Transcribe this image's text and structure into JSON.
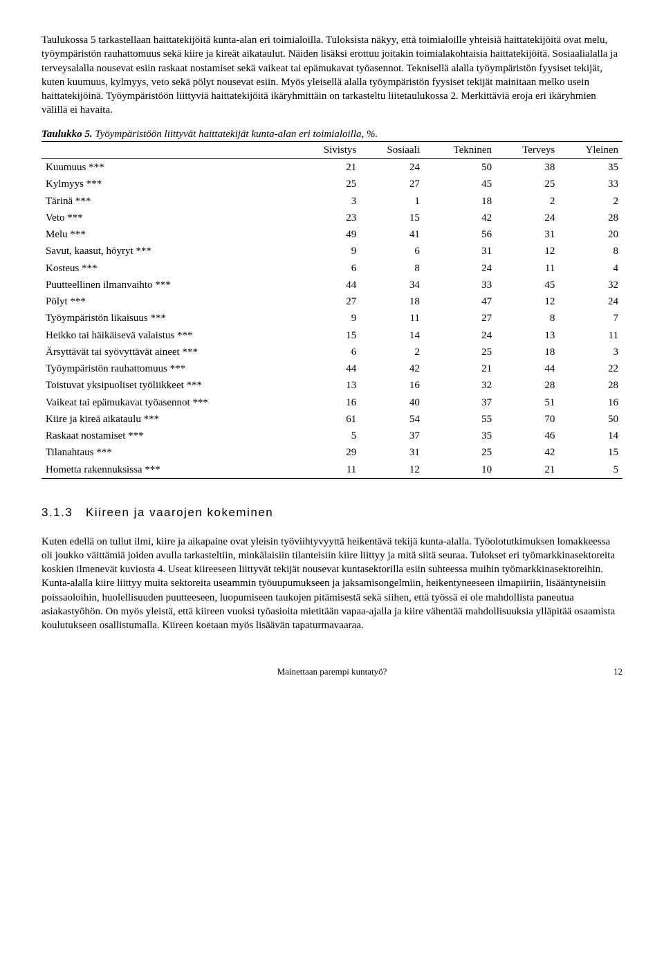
{
  "para1": "Taulukossa 5 tarkastellaan haittatekijöitä kunta-alan eri toimialoilla. Tuloksista näkyy, että toimialoille yhteisiä haittatekijöitä ovat melu, työympäristön rauhattomuus sekä kiire ja kireät aikataulut. Näiden lisäksi erottuu joitakin toimialakohtaisia haittatekijöitä. Sosiaalialalla ja terveysalalla nousevat esiin raskaat nostamiset sekä vaikeat tai epämukavat työasennot. Teknisellä alalla työympäristön fyysiset tekijät, kuten kuumuus, kylmyys, veto sekä pölyt nousevat esiin. Myös yleisellä alalla työympäristön fyysiset tekijät mainitaan melko usein haittatekijöinä. Työympäristöön liittyviä haittatekijöitä ikäryhmittäin on tarkasteltu liitetaulukossa 2. Merkittäviä eroja eri ikäryhmien välillä ei havaita.",
  "tableTitleBold": "Taulukko 5.",
  "tableTitleItalic": " Työympäristöön liittyvät haittatekijät kunta-alan eri toimialoilla, %.",
  "table": {
    "columns": [
      "",
      "Sivistys",
      "Sosiaali",
      "Tekninen",
      "Terveys",
      "Yleinen"
    ],
    "rows": [
      [
        "Kuumuus ***",
        "21",
        "24",
        "50",
        "38",
        "35"
      ],
      [
        "Kylmyys ***",
        "25",
        "27",
        "45",
        "25",
        "33"
      ],
      [
        "Tärinä ***",
        "3",
        "1",
        "18",
        "2",
        "2"
      ],
      [
        "Veto ***",
        "23",
        "15",
        "42",
        "24",
        "28"
      ],
      [
        "Melu ***",
        "49",
        "41",
        "56",
        "31",
        "20"
      ],
      [
        "Savut, kaasut, höyryt ***",
        "9",
        "6",
        "31",
        "12",
        "8"
      ],
      [
        "Kosteus ***",
        "6",
        "8",
        "24",
        "11",
        "4"
      ],
      [
        "Puutteellinen ilmanvaihto ***",
        "44",
        "34",
        "33",
        "45",
        "32"
      ],
      [
        "Pölyt ***",
        "27",
        "18",
        "47",
        "12",
        "24"
      ],
      [
        "Työympäristön likaisuus ***",
        "9",
        "11",
        "27",
        "8",
        "7"
      ],
      [
        "Heikko tai häikäisevä valaistus ***",
        "15",
        "14",
        "24",
        "13",
        "11"
      ],
      [
        "Ärsyttävät tai syövyttävät aineet ***",
        "6",
        "2",
        "25",
        "18",
        "3"
      ],
      [
        "Työympäristön rauhattomuus ***",
        "44",
        "42",
        "21",
        "44",
        "22"
      ],
      [
        "Toistuvat yksipuoliset työliikkeet ***",
        "13",
        "16",
        "32",
        "28",
        "28"
      ],
      [
        "Vaikeat tai epämukavat työasennot ***",
        "16",
        "40",
        "37",
        "51",
        "16"
      ],
      [
        "Kiire ja kireä aikataulu ***",
        "61",
        "54",
        "55",
        "70",
        "50"
      ],
      [
        "Raskaat nostamiset ***",
        "5",
        "37",
        "35",
        "46",
        "14"
      ],
      [
        "Tilanahtaus ***",
        "29",
        "31",
        "25",
        "42",
        "15"
      ],
      [
        "Hometta rakennuksissa ***",
        "11",
        "12",
        "10",
        "21",
        "5"
      ]
    ],
    "col_widths": [
      "44%",
      "11%",
      "11%",
      "11%",
      "11%",
      "12%"
    ],
    "border_color": "#000000",
    "font_size": 15
  },
  "sectionNumber": "3.1.3",
  "sectionTitle": "Kiireen ja vaarojen kokeminen",
  "para2": "Kuten edellä on tullut ilmi, kiire ja aikapaine ovat yleisin työviihtyvyyttä heikentävä tekijä kunta-alalla. Työolotutkimuksen lomakkeessa oli joukko väittämiä joiden avulla tarkasteltiin, minkälaisiin tilanteisiin kiire liittyy ja mitä siitä seuraa. Tulokset eri työmarkkinasektoreita koskien ilmenevät kuviosta 4. Useat kiireeseen liittyvät tekijät nousevat kuntasektorilla esiin suhteessa muihin työmarkkinasektoreihin. Kunta-alalla kiire liittyy muita sektoreita useammin työuupumukseen ja jaksamisongelmiin, heikentyneeseen ilmapiiriin, lisääntyneisiin poissaoloihin, huolellisuuden puutteeseen, luopumiseen taukojen pitämisestä sekä siihen, että työssä ei ole mahdollista paneutua asiakastyöhön. On myös yleistä, että kiireen vuoksi työasioita mietitään vapaa-ajalla ja kiire vähentää mahdollisuuksia ylläpitää osaamista koulutukseen osallistumalla. Kiireen koetaan myös lisäävän tapaturmavaaraa.",
  "footerText": "Mainettaan parempi kuntatyö?",
  "pageNumber": "12"
}
